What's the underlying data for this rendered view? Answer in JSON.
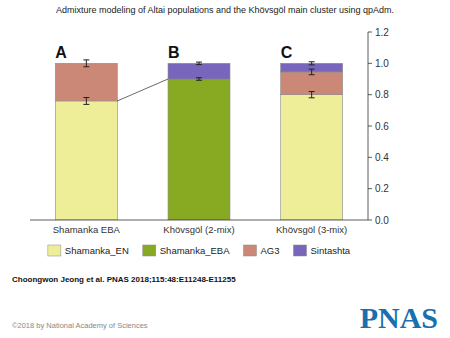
{
  "chart_data": {
    "type": "bar",
    "stacked": true,
    "title": "Admixture modeling of Altai populations and the Khövsgöl main cluster using qpAdm.",
    "categories": [
      "Shamanka EBA",
      "Khövsgöl (2-mix)",
      "Khövsgöl (3-mix)"
    ],
    "series": [
      {
        "name": "Shamanka_EN",
        "color": "#EEEE99",
        "values": [
          0.76,
          null,
          0.8
        ],
        "errors": [
          0.022,
          null,
          0.02
        ]
      },
      {
        "name": "Shamanka_EBA",
        "color": "#88AA22",
        "values": [
          null,
          0.9,
          null
        ],
        "errors": [
          null,
          0.008,
          null
        ]
      },
      {
        "name": "AG3",
        "color": "#CC8877",
        "values": [
          0.24,
          null,
          0.145
        ],
        "errors": [
          0.022,
          null,
          0.018
        ]
      },
      {
        "name": "Sintashta",
        "color": "#7766BB",
        "values": [
          null,
          0.1,
          0.055
        ],
        "errors": [
          null,
          0.008,
          0.01
        ]
      }
    ],
    "annotations": [
      "A",
      "B",
      "C"
    ],
    "footnotes": [
      "Choongwon Jeong et al. PNAS 2018;115:48:E11248-E11255",
      "©2018 by National Academy of Sciences"
    ],
    "logo": "PNAS",
    "ylim": [
      0.0,
      1.2
    ],
    "yticks": [
      {
        "value": 0.0,
        "label": "0.0"
      },
      0.2,
      0.4,
      0.6,
      0.8,
      {
        "value": 1.0,
        "label": "1.0"
      },
      1.2
    ],
    "grid": false,
    "legend": "bottom"
  }
}
